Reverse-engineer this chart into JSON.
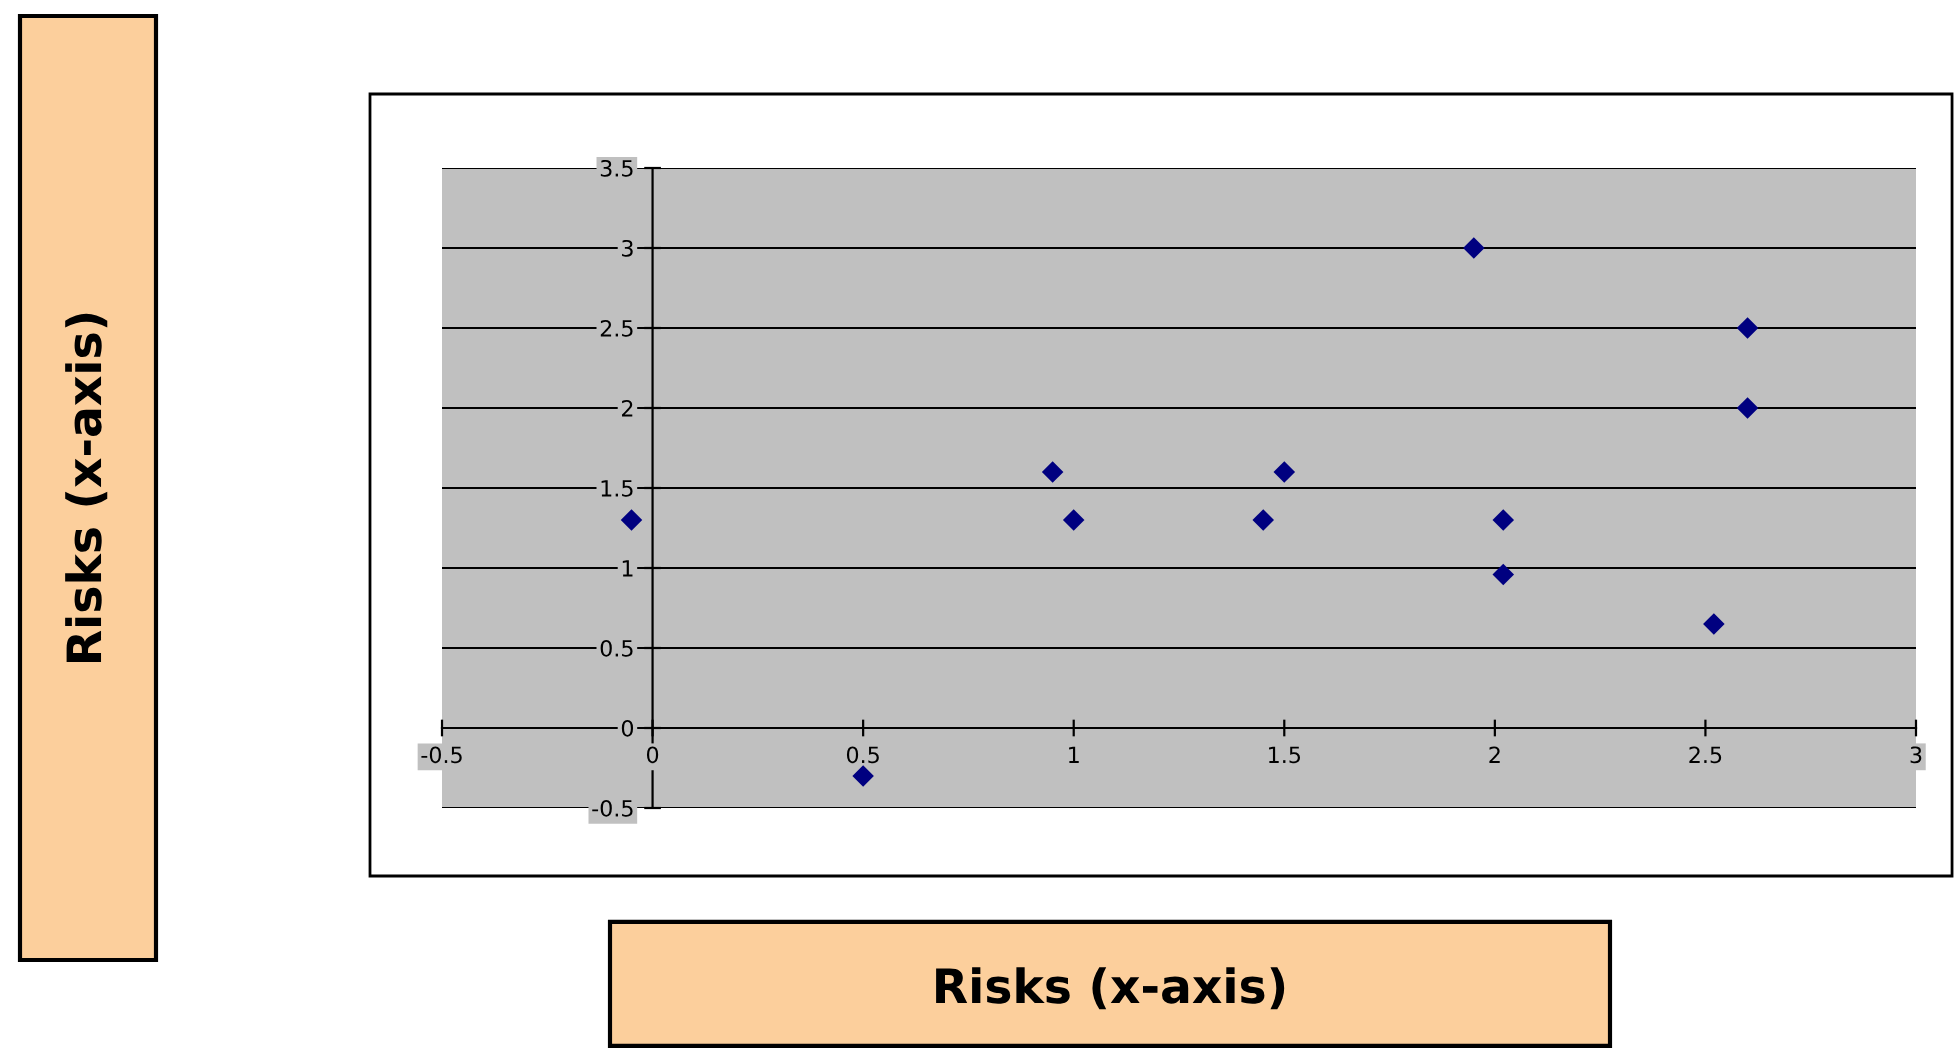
{
  "chart_data": {
    "type": "scatter",
    "xlabel": "Risks (x-axis)",
    "annotations": [
      "Risks (x-axis)"
    ],
    "x": [
      -0.05,
      0.5,
      0.95,
      1.0,
      1.45,
      1.5,
      1.95,
      2.02,
      2.02,
      2.52,
      2.6,
      2.6
    ],
    "series": [
      {
        "color": "#000080",
        "values": [
          1.3,
          -0.3,
          1.6,
          1.3,
          1.3,
          1.6,
          3.0,
          1.3,
          0.96,
          0.65,
          2.5,
          2.0
        ]
      }
    ],
    "xlim": [
      -0.5,
      3
    ],
    "xticks": [
      -0.5,
      0,
      0.5,
      1,
      1.5,
      2,
      2.5,
      3
    ],
    "ylim": [
      -0.5,
      3.5
    ],
    "yticks": [
      -0.5,
      0,
      0.5,
      1,
      1.5,
      2,
      2.5,
      3,
      3.5
    ],
    "grid": "y",
    "marker": "diamond",
    "legend": false
  }
}
